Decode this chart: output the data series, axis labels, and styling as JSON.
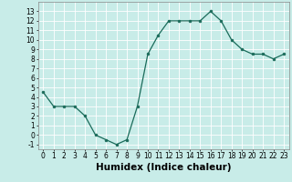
{
  "x": [
    0,
    1,
    2,
    3,
    4,
    5,
    6,
    7,
    8,
    9,
    10,
    11,
    12,
    13,
    14,
    15,
    16,
    17,
    18,
    19,
    20,
    21,
    22,
    23
  ],
  "y": [
    4.5,
    3.0,
    3.0,
    3.0,
    2.0,
    0.0,
    -0.5,
    -1.0,
    -0.5,
    3.0,
    8.5,
    10.5,
    12.0,
    12.0,
    12.0,
    12.0,
    13.0,
    12.0,
    10.0,
    9.0,
    8.5,
    8.5,
    8.0,
    8.5
  ],
  "xlabel": "Humidex (Indice chaleur)",
  "ylim": [
    -1.5,
    14.0
  ],
  "xlim": [
    -0.5,
    23.5
  ],
  "yticks": [
    -1,
    0,
    1,
    2,
    3,
    4,
    5,
    6,
    7,
    8,
    9,
    10,
    11,
    12,
    13
  ],
  "xticks": [
    0,
    1,
    2,
    3,
    4,
    5,
    6,
    7,
    8,
    9,
    10,
    11,
    12,
    13,
    14,
    15,
    16,
    17,
    18,
    19,
    20,
    21,
    22,
    23
  ],
  "line_color": "#1a6b5a",
  "marker_color": "#1a6b5a",
  "bg_color": "#c8ece8",
  "grid_color": "#ffffff",
  "tick_label_fontsize": 5.5,
  "xlabel_fontsize": 7.5
}
